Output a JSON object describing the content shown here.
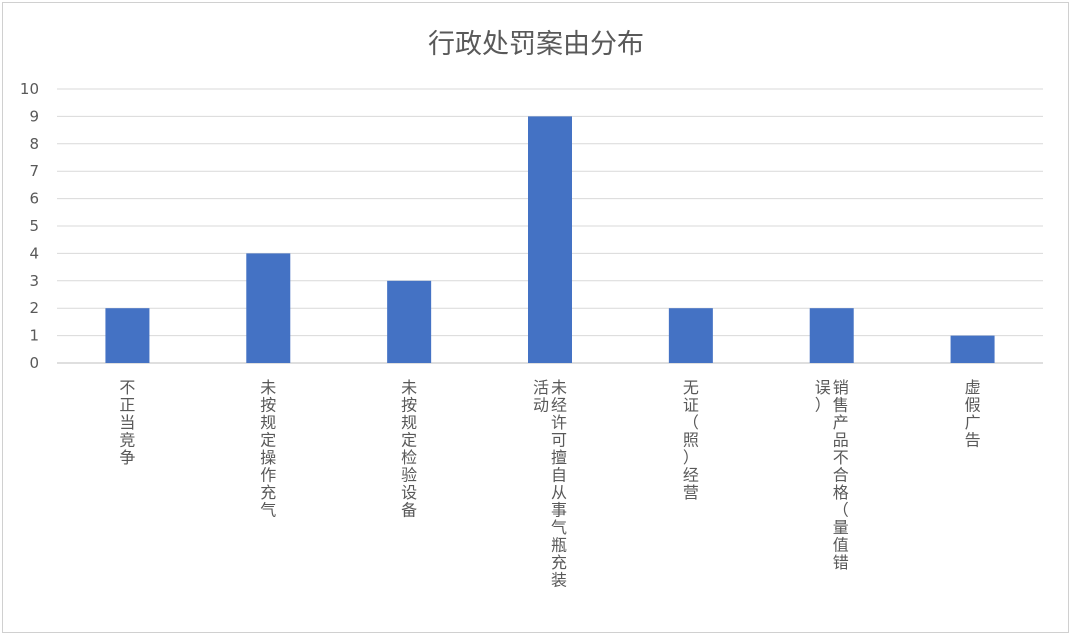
{
  "chart_data": {
    "type": "bar",
    "title": "行政处罚案由分布",
    "xlabel": "",
    "ylabel": "",
    "ylim": [
      0,
      10
    ],
    "yticks": [
      0,
      1,
      2,
      3,
      4,
      5,
      6,
      7,
      8,
      9,
      10
    ],
    "grid": true,
    "legend": "none",
    "bar_color": "#4472c4",
    "categories": [
      "不正当竞争",
      "未按规定操作充气",
      "未按规定检验设备",
      "未经许可擅自从事气瓶充装活动",
      "无证（照）经营",
      "销售产品不合格（量值错误）",
      "虚假广告"
    ],
    "category_columns": [
      [
        "不正当竞争"
      ],
      [
        "未按规定操作充气"
      ],
      [
        "未按规定检验设备"
      ],
      [
        "未经许可擅自从事气瓶充装",
        "活动"
      ],
      [
        "无证（照）经营"
      ],
      [
        "销售产品不合格（量值错",
        "误）"
      ],
      [
        "虚假广告"
      ]
    ],
    "values": [
      2,
      4,
      3,
      9,
      2,
      2,
      1
    ]
  }
}
